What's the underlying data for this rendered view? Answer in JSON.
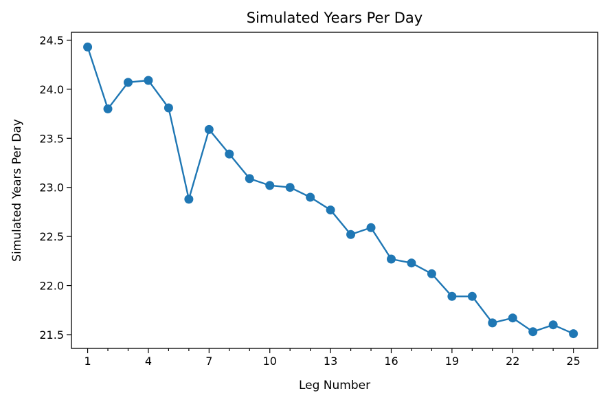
{
  "chart_data": {
    "type": "line",
    "title": "Simulated Years Per Day",
    "xlabel": "Leg Number",
    "ylabel": "Simulated Years Per Day",
    "xlim": [
      0.2,
      26.2
    ],
    "ylim": [
      21.36,
      24.58
    ],
    "xticks": [
      1,
      4,
      7,
      10,
      13,
      16,
      19,
      22,
      25
    ],
    "xticks_minor": [
      2,
      3,
      5,
      6,
      8,
      9,
      11,
      12,
      14,
      15,
      17,
      18,
      20,
      21,
      23,
      24
    ],
    "yticks": [
      21.5,
      22.0,
      22.5,
      23.0,
      23.5,
      24.0,
      24.5
    ],
    "ytick_labels": [
      "21.5",
      "22.0",
      "22.5",
      "23.0",
      "23.5",
      "24.0",
      "24.5"
    ],
    "grid": false,
    "color": "#1f77b4",
    "marker": "circle",
    "series": [
      {
        "x": [
          1,
          2,
          3,
          4,
          5,
          6,
          7,
          8,
          9,
          10,
          11,
          12,
          13,
          14,
          15,
          16,
          17,
          18,
          19,
          20,
          21,
          22,
          23,
          24,
          25
        ],
        "y": [
          24.43,
          23.8,
          24.07,
          24.09,
          23.81,
          22.88,
          23.59,
          23.34,
          23.09,
          23.02,
          23.0,
          22.9,
          22.77,
          22.52,
          22.59,
          22.27,
          22.23,
          22.12,
          21.89,
          21.89,
          21.62,
          21.67,
          21.53,
          21.6,
          21.51
        ]
      }
    ]
  }
}
